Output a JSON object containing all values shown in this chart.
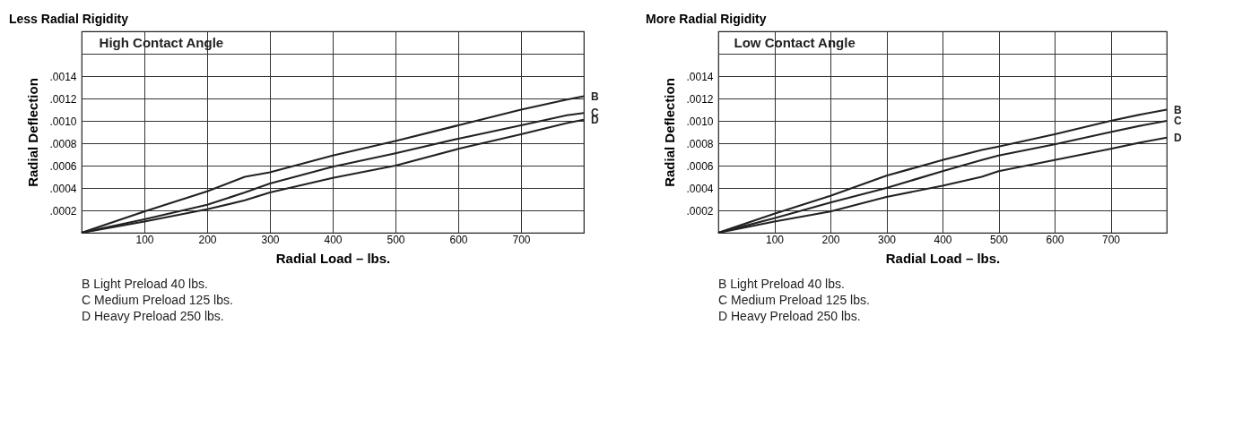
{
  "chart_data": [
    {
      "type": "line",
      "title": "Less Radial Rigidity",
      "xlabel": "Radial Load – lbs.",
      "ylabel": "Radial Deflection",
      "annotations": [
        "High Contact Angle",
        "B Light Preload 40 lbs.",
        "C Medium Preload 125 lbs.",
        "D Heavy Preload 250 lbs."
      ],
      "x": [
        0,
        100,
        200,
        260,
        300,
        400,
        500,
        600,
        700,
        773,
        800
      ],
      "xlim": [
        0,
        800
      ],
      "xticks": [
        100,
        200,
        300,
        400,
        500,
        600,
        700
      ],
      "ylim": [
        0,
        0.0018
      ],
      "yticks": [
        {
          "value": 0.0002,
          "label": ".0002"
        },
        {
          "value": 0.0004,
          "label": ".0004"
        },
        {
          "value": 0.0006,
          "label": ".0006"
        },
        {
          "value": 0.0008,
          "label": ".0008"
        },
        {
          "value": 0.001,
          "label": ".0010"
        },
        {
          "value": 0.0012,
          "label": ".0012"
        },
        {
          "value": 0.0014,
          "label": ".0014"
        },
        {
          "value": 0.0016,
          "label": null
        }
      ],
      "grid": true,
      "legend": false,
      "line_style": "solid",
      "series": [
        {
          "name": "B",
          "color": "#222222",
          "values": [
            0,
            0.00019,
            0.00037,
            0.0005,
            0.00054,
            0.00069,
            0.00082,
            0.00096,
            0.0011,
            0.00119,
            0.00122
          ]
        },
        {
          "name": "C",
          "color": "#222222",
          "values": [
            0,
            0.00012,
            0.00025,
            0.00036,
            0.00044,
            0.00059,
            0.00071,
            0.00084,
            0.00096,
            0.00105,
            0.00107
          ]
        },
        {
          "name": "D",
          "color": "#222222",
          "values": [
            0,
            0.0001,
            0.00021,
            0.00029,
            0.00036,
            0.00049,
            0.0006,
            0.00075,
            0.00088,
            0.00098,
            0.00101
          ]
        }
      ]
    },
    {
      "type": "line",
      "title": "More Radial Rigidity",
      "xlabel": "Radial Load – lbs.",
      "ylabel": "Radial Deflection",
      "annotations": [
        "Low Contact Angle",
        "B Light Preload 40 lbs.",
        "C Medium Preload 125 lbs.",
        "D Heavy Preload 250 lbs."
      ],
      "x": [
        0,
        100,
        200,
        300,
        400,
        470,
        500,
        600,
        700,
        757,
        800
      ],
      "xlim": [
        0,
        800
      ],
      "xticks": [
        100,
        200,
        300,
        400,
        500,
        600,
        700
      ],
      "ylim": [
        0,
        0.0018
      ],
      "yticks": [
        {
          "value": 0.0002,
          "label": ".0002"
        },
        {
          "value": 0.0004,
          "label": ".0004"
        },
        {
          "value": 0.0006,
          "label": ".0006"
        },
        {
          "value": 0.0008,
          "label": ".0008"
        },
        {
          "value": 0.001,
          "label": ".0010"
        },
        {
          "value": 0.0012,
          "label": ".0012"
        },
        {
          "value": 0.0014,
          "label": ".0014"
        },
        {
          "value": 0.0016,
          "label": null
        }
      ],
      "grid": true,
      "legend": false,
      "line_style": "solid",
      "series": [
        {
          "name": "B",
          "color": "#222222",
          "values": [
            0,
            0.00017,
            0.00033,
            0.00051,
            0.00065,
            0.00074,
            0.00077,
            0.00088,
            0.001,
            0.00106,
            0.0011
          ]
        },
        {
          "name": "C",
          "color": "#222222",
          "values": [
            0,
            0.00013,
            0.00027,
            0.0004,
            0.00055,
            0.00065,
            0.00069,
            0.00079,
            0.0009,
            0.00096,
            0.001
          ]
        },
        {
          "name": "D",
          "color": "#222222",
          "values": [
            0,
            0.0001,
            0.00019,
            0.00032,
            0.00042,
            0.0005,
            0.00055,
            0.00065,
            0.00075,
            0.00081,
            0.00085
          ]
        }
      ]
    }
  ]
}
